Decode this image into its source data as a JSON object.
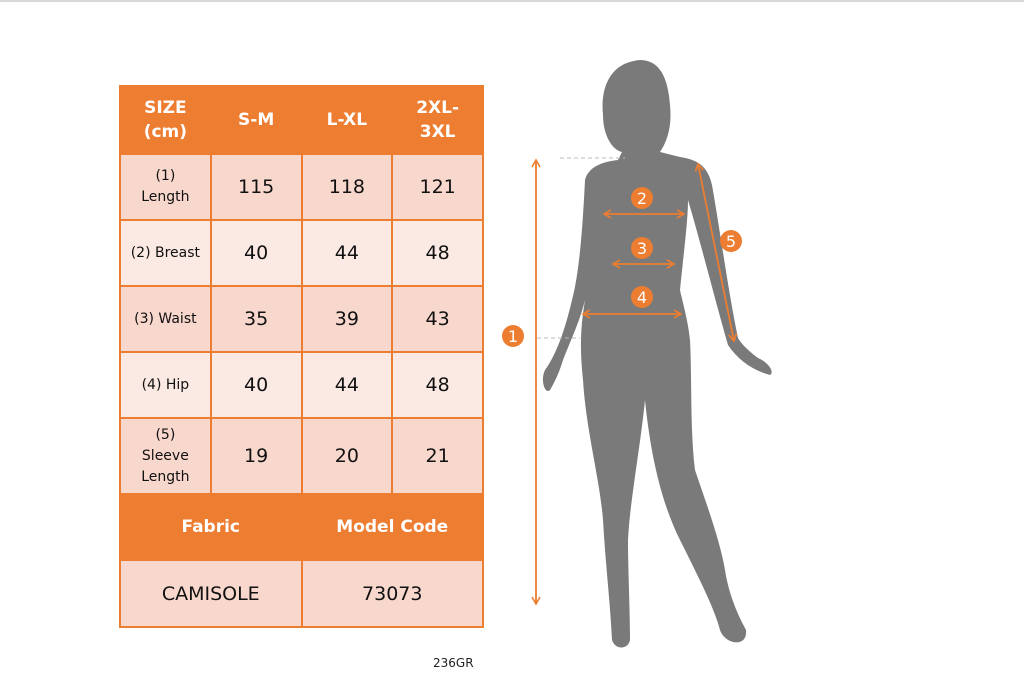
{
  "table": {
    "headers": [
      "SIZE (cm)",
      "S-M",
      "L-XL",
      "2XL-3XL"
    ],
    "header_lines": [
      [
        "SIZE",
        "(cm)"
      ],
      [
        "S-M"
      ],
      [
        "L-XL"
      ],
      [
        "2XL-",
        "3XL"
      ]
    ],
    "rows": [
      {
        "label_lines": [
          "(1)",
          "Length"
        ],
        "values": [
          "115",
          "118",
          "121"
        ]
      },
      {
        "label_lines": [
          "(2) Breast"
        ],
        "values": [
          "40",
          "44",
          "48"
        ]
      },
      {
        "label_lines": [
          "(3) Waist"
        ],
        "values": [
          "35",
          "39",
          "43"
        ]
      },
      {
        "label_lines": [
          "(4) Hip"
        ],
        "values": [
          "40",
          "44",
          "48"
        ]
      },
      {
        "label_lines": [
          "(5)",
          "Sleeve",
          "Length"
        ],
        "values": [
          "19",
          "20",
          "21"
        ]
      }
    ],
    "footer_headers": [
      "Fabric",
      "Model Code"
    ],
    "footer_values": [
      "CAMISOLE",
      "73073"
    ]
  },
  "diagram": {
    "markers": [
      "1",
      "2",
      "3",
      "4",
      "5"
    ]
  },
  "caption": "236GR",
  "colors": {
    "accent": "#ed7d31",
    "row_dark": "#f8d7cd",
    "row_light": "#fbe9e4",
    "silhouette": "#7a7a7a"
  }
}
